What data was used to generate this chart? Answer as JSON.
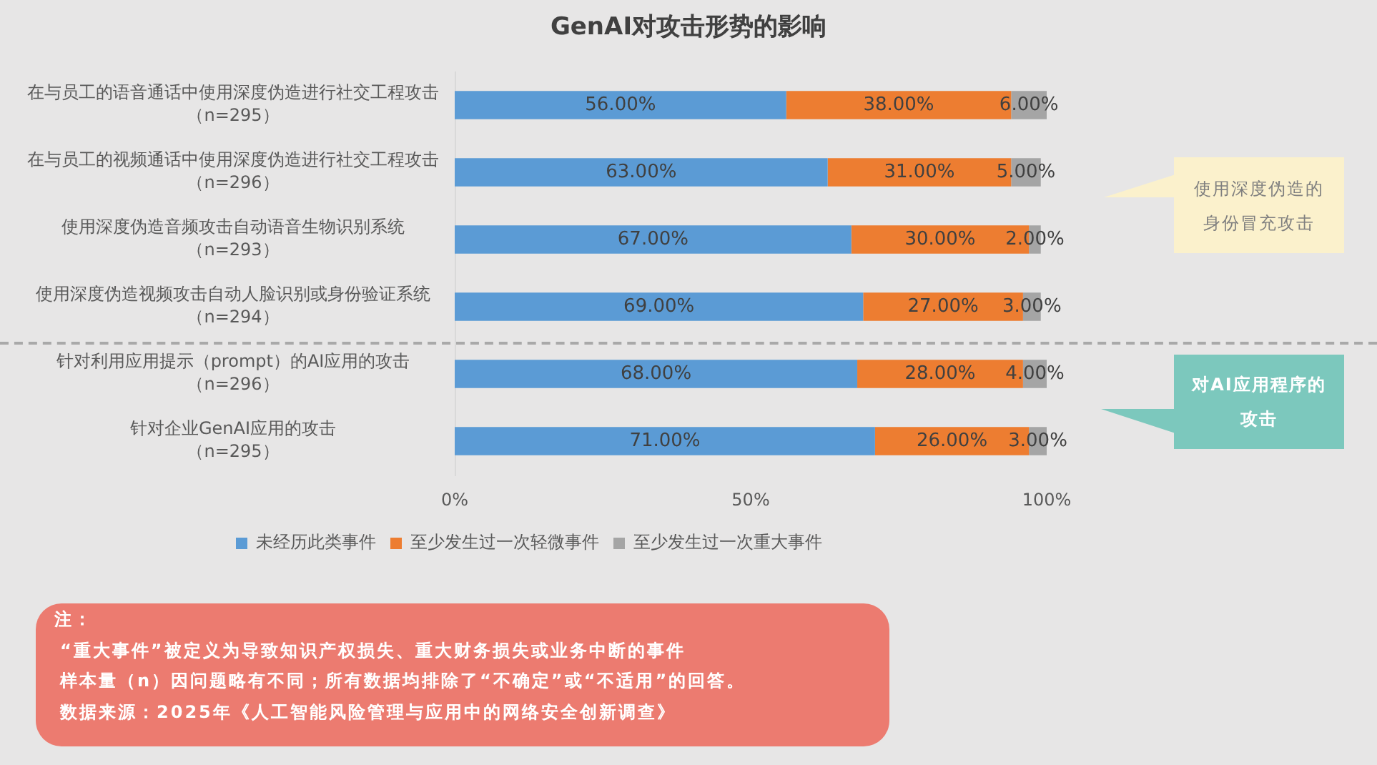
{
  "chart_data": {
    "type": "bar",
    "orientation": "horizontal",
    "stacked": true,
    "title": "GenAI对攻击形势的影响",
    "categories": [
      "在与员工的语音通话中使用深度伪造进行社交工程攻击（n=295）",
      "在与员工的视频通话中使用深度伪造进行社交工程攻击（n=296）",
      "使用深度伪造音频攻击自动语音生物识别系统（n=293）",
      "使用深度伪造视频攻击自动人脸识别或身份验证系统（n=294）",
      "针对利用应用提示（prompt）的AI应用的攻击（n=296）",
      "针对企业GenAI应用的攻击（n=295）"
    ],
    "series": [
      {
        "name": "未经历此类事件",
        "color": "#5b9bd5",
        "values": [
          56,
          63,
          67,
          69,
          68,
          71
        ],
        "value_labels": [
          "56.00%",
          "63.00%",
          "67.00%",
          "69.00%",
          "68.00%",
          "71.00%"
        ]
      },
      {
        "name": "至少发生过一次轻微事件",
        "color": "#ed7d31",
        "values": [
          38,
          31,
          30,
          27,
          28,
          26
        ],
        "value_labels": [
          "38.00%",
          "31.00%",
          "30.00%",
          "27.00%",
          "28.00%",
          "26.00%"
        ]
      },
      {
        "name": "至少发生过一次重大事件",
        "color": "#a5a5a5",
        "values": [
          6,
          5,
          2,
          3,
          4,
          3
        ],
        "value_labels": [
          "6.00%",
          "5.00%",
          "2.00%",
          "3.00%",
          "4.00%",
          "3.00%"
        ]
      }
    ],
    "xlim": [
      0,
      100
    ],
    "xticks": [
      {
        "value": 0,
        "label": "0%"
      },
      {
        "value": 50,
        "label": "50%"
      },
      {
        "value": 100,
        "label": "100%"
      }
    ],
    "legend": "bottom",
    "annotations": [
      "使用深度伪造的身份冒充攻击",
      "对AI应用程序的攻击",
      "注：",
      "“重大事件”被定义为导致知识产权损失、重大财务损失或业务中断的事件",
      "样本量（n）因问题略有不同；所有数据均排除了“不确定”或“不适用”的回答。",
      "数据来源：2025年《人工智能风险管理与应用中的网络安全创新调查》"
    ]
  }
}
